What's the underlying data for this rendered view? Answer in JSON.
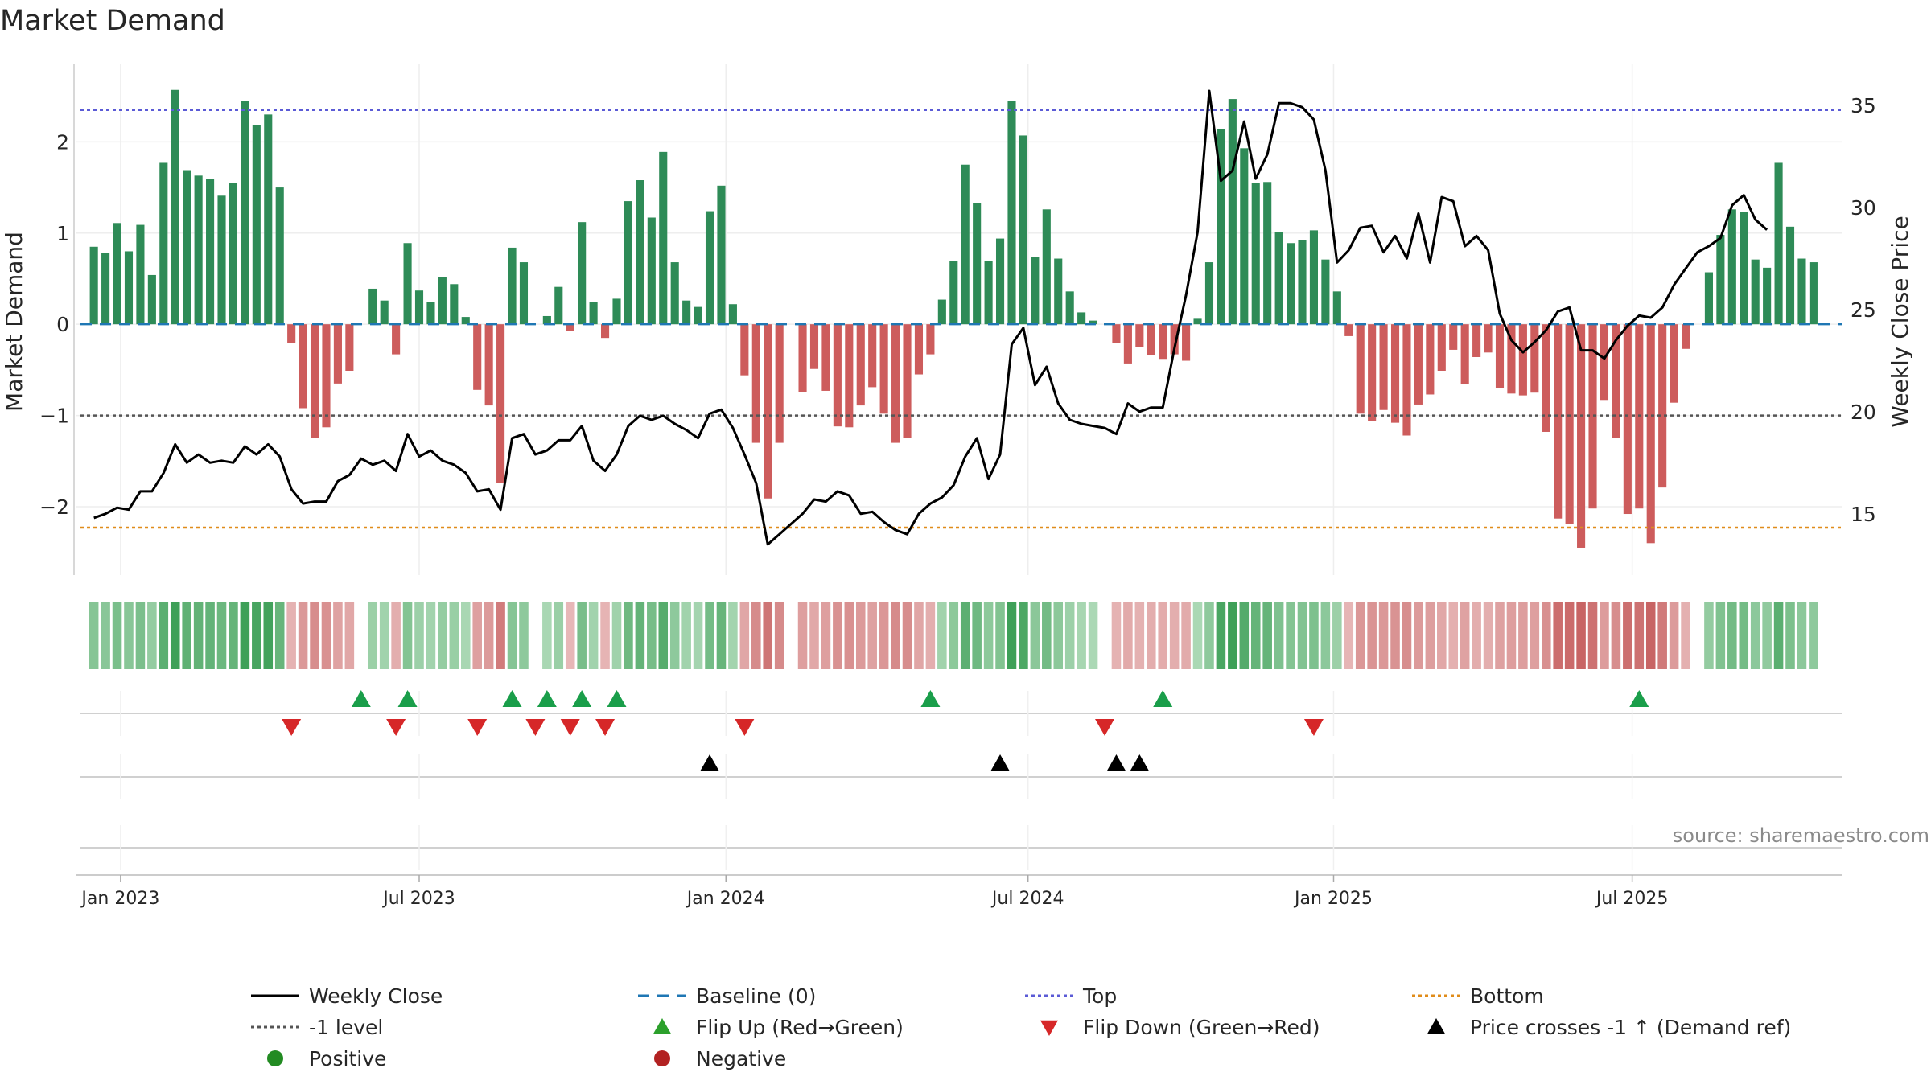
{
  "chart_data": {
    "type": "bar+line",
    "title": "Market Demand",
    "ylabel_left": "Market Demand",
    "ylabel_right": "Weekly Close Price",
    "ylim_left": [
      -2.75,
      2.85
    ],
    "ylim_right": [
      12.0,
      37.0
    ],
    "left_ticks": [
      -2,
      -1,
      0,
      1,
      2
    ],
    "left_tick_labels": [
      "−2",
      "−1",
      "0",
      "1",
      "2"
    ],
    "right_ticks": [
      15,
      20,
      25,
      30,
      35
    ],
    "right_tick_labels": [
      "15",
      "20",
      "25",
      "30",
      "35"
    ],
    "x_start": "2023-01-02",
    "x_range_weeks": [
      -1.5,
      150.5
    ],
    "x_ticks": [
      {
        "week": 2.3,
        "label": "Jan 2023"
      },
      {
        "week": 28.0,
        "label": "Jul 2023"
      },
      {
        "week": 54.4,
        "label": "Jan 2024"
      },
      {
        "week": 80.4,
        "label": "Jul 2024"
      },
      {
        "week": 106.7,
        "label": "Jan 2025"
      },
      {
        "week": 132.4,
        "label": "Jul 2025"
      }
    ],
    "reference_lines": {
      "top": 2.35,
      "bottom": -2.23,
      "minus_one": -1.0,
      "baseline": 0.0
    },
    "demand": [
      0.85,
      0.78,
      1.11,
      0.8,
      1.09,
      0.54,
      1.77,
      2.57,
      1.69,
      1.63,
      1.59,
      1.41,
      1.55,
      2.45,
      2.18,
      2.3,
      1.5,
      -0.21,
      -0.92,
      -1.25,
      -1.13,
      -0.65,
      -0.51,
      0,
      0.39,
      0.26,
      -0.33,
      0.89,
      0.37,
      0.24,
      0.52,
      0.44,
      0.08,
      -0.72,
      -0.89,
      -1.74,
      0.84,
      0.68,
      0,
      0.09,
      0.41,
      -0.07,
      1.12,
      0.24,
      -0.15,
      0.28,
      1.35,
      1.58,
      1.17,
      1.89,
      0.68,
      0.26,
      0.19,
      1.24,
      1.52,
      0.22,
      -0.56,
      -1.3,
      -1.91,
      -1.3,
      0,
      -0.74,
      -0.49,
      -0.73,
      -1.12,
      -1.13,
      -0.89,
      -0.69,
      -0.98,
      -1.3,
      -1.25,
      -0.55,
      -0.33,
      0.27,
      0.69,
      1.75,
      1.33,
      0.69,
      0.94,
      2.45,
      2.07,
      0.74,
      1.26,
      0.72,
      0.36,
      0.13,
      0.04,
      0,
      -0.21,
      -0.43,
      -0.25,
      -0.34,
      -0.38,
      -0.33,
      -0.4,
      0.06,
      0.68,
      2.14,
      2.47,
      1.93,
      1.55,
      1.56,
      1.01,
      0.89,
      0.92,
      1.03,
      0.71,
      0.36,
      -0.13,
      -0.98,
      -1.06,
      -0.94,
      -1.08,
      -1.22,
      -0.88,
      -0.77,
      -0.51,
      -0.28,
      -0.66,
      -0.36,
      -0.31,
      -0.7,
      -0.76,
      -0.78,
      -0.75,
      -1.18,
      -2.13,
      -2.19,
      -2.45,
      -2.02,
      -0.83,
      -1.25,
      -2.08,
      -2.02,
      -2.4,
      -1.79,
      -0.86,
      -0.27,
      0,
      0.57,
      0.98,
      1.26,
      1.23,
      0.71,
      0.62,
      1.77,
      1.07,
      0.72,
      0.68
    ],
    "close": [
      14.8,
      15.0,
      15.3,
      15.2,
      16.1,
      16.1,
      17.0,
      18.4,
      17.5,
      17.9,
      17.5,
      17.6,
      17.5,
      18.3,
      17.9,
      18.4,
      17.8,
      16.2,
      15.5,
      15.6,
      15.6,
      16.6,
      16.9,
      17.7,
      17.4,
      17.6,
      17.1,
      18.9,
      17.8,
      18.1,
      17.6,
      17.4,
      17.0,
      16.1,
      16.2,
      15.2,
      18.7,
      18.9,
      17.9,
      18.1,
      18.6,
      18.6,
      19.3,
      17.6,
      17.1,
      17.9,
      19.3,
      19.8,
      19.6,
      19.8,
      19.4,
      19.1,
      18.7,
      19.9,
      20.1,
      19.2,
      17.9,
      16.5,
      13.5,
      14.0,
      14.5,
      15.0,
      15.7,
      15.6,
      16.1,
      15.9,
      15.0,
      15.1,
      14.6,
      14.2,
      14.0,
      15.0,
      15.5,
      15.8,
      16.4,
      17.8,
      18.7,
      16.7,
      17.9,
      23.3,
      24.1,
      21.3,
      22.2,
      20.4,
      19.6,
      19.4,
      19.3,
      19.2,
      18.9,
      20.4,
      20.0,
      20.2,
      20.2,
      23.1,
      25.7,
      28.8,
      35.7,
      31.3,
      31.8,
      34.2,
      31.4,
      32.6,
      35.1,
      35.1,
      34.9,
      34.3,
      31.8,
      27.3,
      27.9,
      29.0,
      29.1,
      27.8,
      28.6,
      27.5,
      29.7,
      27.3,
      30.5,
      30.3,
      28.1,
      28.6,
      27.9,
      24.8,
      23.5,
      22.9,
      23.4,
      24.0,
      24.9,
      25.1,
      23.0,
      23.0,
      22.6,
      23.5,
      24.2,
      24.7,
      24.6,
      25.1,
      26.2,
      27.0,
      27.8,
      28.1,
      28.5,
      30.1,
      30.6,
      29.4,
      28.9
    ],
    "heatmap_strip": "demand value per week (green = positive, red = negative, shade = magnitude)",
    "flip_up_weeks": [
      23,
      27,
      36,
      39,
      42,
      45,
      72,
      92,
      133
    ],
    "flip_down_weeks": [
      17,
      26,
      33,
      38,
      41,
      44,
      56,
      87,
      105
    ],
    "price_cross_weeks": [
      53,
      78,
      88,
      90
    ],
    "source_text": "source: sharemaestro.com",
    "legend": [
      {
        "label": "Weekly Close",
        "symbol": "line-solid",
        "color": "#000000"
      },
      {
        "label": "Baseline (0)",
        "symbol": "line-dash",
        "color": "#1f77b4"
      },
      {
        "label": "Top",
        "symbol": "line-dot",
        "color": "#5b5bd6"
      },
      {
        "label": "Bottom",
        "symbol": "line-dot",
        "color": "#e08c1a"
      },
      {
        "label": "-1 level",
        "symbol": "line-dot",
        "color": "#555555"
      },
      {
        "label": "Flip Up (Red→Green)",
        "symbol": "triangle-up",
        "color": "#2ca02c"
      },
      {
        "label": "Flip Down (Green→Red)",
        "symbol": "triangle-down",
        "color": "#d62728"
      },
      {
        "label": "Price crosses -1 ↑ (Demand ref)",
        "symbol": "triangle-up",
        "color": "#000000"
      },
      {
        "label": "Positive",
        "symbol": "circle",
        "color": "#228b22"
      },
      {
        "label": "Negative",
        "symbol": "circle",
        "color": "#b22222"
      }
    ],
    "colors": {
      "positive_bar": "#2e8b57",
      "negative_bar": "#cd5c5c",
      "flip_up": "#1a9e4a",
      "flip_down": "#d62728",
      "cross": "#000000",
      "top_line": "#5b5bd6",
      "bottom_line": "#e08c1a",
      "minus_one_line": "#555555",
      "baseline": "#1f77b4",
      "axis": "#cccccc",
      "grid": "#eeeeee",
      "text": "#262626",
      "source": "#8a8a8a"
    }
  }
}
